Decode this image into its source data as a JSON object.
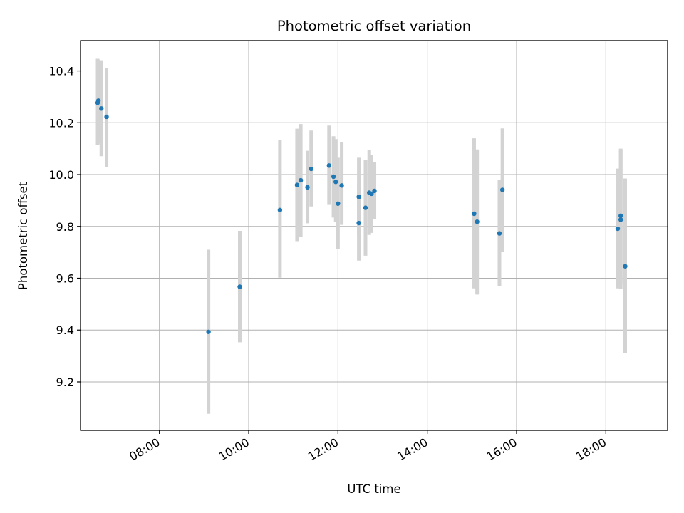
{
  "chart_data": {
    "type": "scatter",
    "title": "Photometric offset variation",
    "xlabel": "UTC time",
    "ylabel": "Photometric offset",
    "x_unit": "time of day (HH:MM)",
    "xlim": [
      "06:14",
      "19:23"
    ],
    "ylim": [
      9.013,
      10.517
    ],
    "x_ticks": [
      "08:00",
      "10:00",
      "12:00",
      "14:00",
      "16:00",
      "18:00"
    ],
    "y_ticks": [
      "9.2",
      "9.4",
      "9.6",
      "9.8",
      "10.0",
      "10.2",
      "10.4"
    ],
    "grid": true,
    "marker_color": "#1f77b4",
    "errorbar_color": "#d3d3d3",
    "points": [
      {
        "x": "06:37",
        "y": 10.277,
        "lo": 10.114,
        "hi": 10.447
      },
      {
        "x": "06:38",
        "y": 10.285,
        "lo": 10.12,
        "hi": 10.443
      },
      {
        "x": "06:42",
        "y": 10.255,
        "lo": 10.071,
        "hi": 10.441
      },
      {
        "x": "06:49",
        "y": 10.223,
        "lo": 10.03,
        "hi": 10.411
      },
      {
        "x": "09:06",
        "y": 9.393,
        "lo": 9.077,
        "hi": 9.71
      },
      {
        "x": "09:48",
        "y": 9.567,
        "lo": 9.353,
        "hi": 9.783
      },
      {
        "x": "10:42",
        "y": 9.863,
        "lo": 9.602,
        "hi": 10.132
      },
      {
        "x": "11:05",
        "y": 9.96,
        "lo": 9.743,
        "hi": 10.177
      },
      {
        "x": "11:10",
        "y": 9.978,
        "lo": 9.761,
        "hi": 10.195
      },
      {
        "x": "11:19",
        "y": 9.951,
        "lo": 9.812,
        "hi": 10.092
      },
      {
        "x": "11:24",
        "y": 10.022,
        "lo": 9.877,
        "hi": 10.17
      },
      {
        "x": "11:48",
        "y": 10.035,
        "lo": 9.883,
        "hi": 10.189
      },
      {
        "x": "11:54",
        "y": 9.992,
        "lo": 9.834,
        "hi": 10.148
      },
      {
        "x": "11:57",
        "y": 9.972,
        "lo": 9.818,
        "hi": 10.137
      },
      {
        "x": "12:00",
        "y": 9.888,
        "lo": 9.713,
        "hi": 10.065
      },
      {
        "x": "12:05",
        "y": 9.958,
        "lo": 9.806,
        "hi": 10.124
      },
      {
        "x": "12:28",
        "y": 9.914,
        "lo": 9.765,
        "hi": 10.065
      },
      {
        "x": "12:28",
        "y": 9.813,
        "lo": 9.668,
        "hi": 9.962
      },
      {
        "x": "12:37",
        "y": 9.872,
        "lo": 9.687,
        "hi": 10.056
      },
      {
        "x": "12:42",
        "y": 9.93,
        "lo": 9.767,
        "hi": 10.095
      },
      {
        "x": "12:45",
        "y": 9.926,
        "lo": 9.775,
        "hi": 10.076
      },
      {
        "x": "12:49",
        "y": 9.937,
        "lo": 9.828,
        "hi": 10.049
      },
      {
        "x": "15:03",
        "y": 9.849,
        "lo": 9.561,
        "hi": 10.14
      },
      {
        "x": "15:07",
        "y": 9.818,
        "lo": 9.537,
        "hi": 10.097
      },
      {
        "x": "15:37",
        "y": 9.773,
        "lo": 9.57,
        "hi": 9.978
      },
      {
        "x": "15:41",
        "y": 9.941,
        "lo": 9.702,
        "hi": 10.178
      },
      {
        "x": "18:16",
        "y": 9.791,
        "lo": 9.561,
        "hi": 10.023
      },
      {
        "x": "18:20",
        "y": 9.841,
        "lo": 9.58,
        "hi": 10.1
      },
      {
        "x": "18:20",
        "y": 9.826,
        "lo": 9.559,
        "hi": 10.096
      },
      {
        "x": "18:26",
        "y": 9.646,
        "lo": 9.31,
        "hi": 9.985
      }
    ]
  }
}
